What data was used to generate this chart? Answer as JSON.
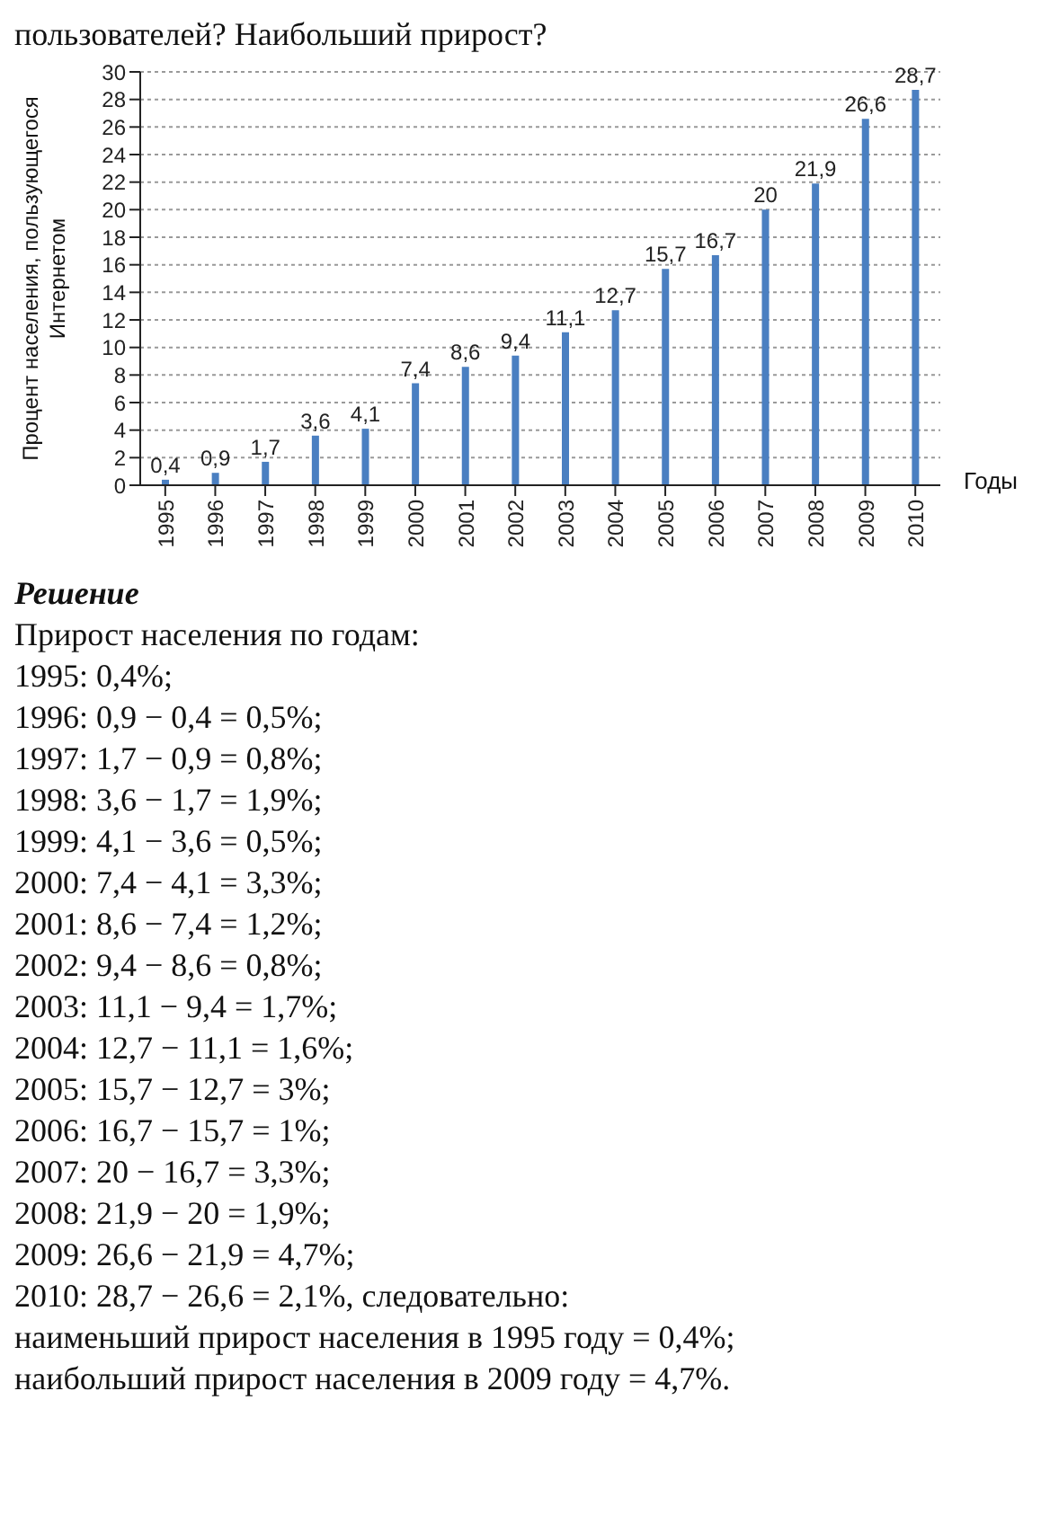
{
  "chart_data": {
    "type": "bar",
    "title": "пользователей? Наибольший прирост?",
    "ylabel": "Процент населения, пользующегося Интернетом",
    "xlabel": "Годы",
    "categories": [
      "1995",
      "1996",
      "1997",
      "1998",
      "1999",
      "2000",
      "2001",
      "2002",
      "2003",
      "2004",
      "2005",
      "2006",
      "2007",
      "2008",
      "2009",
      "2010"
    ],
    "values": [
      0.4,
      0.9,
      1.7,
      3.6,
      4.1,
      7.4,
      8.6,
      9.4,
      11.1,
      12.7,
      15.7,
      16.7,
      20,
      21.9,
      26.6,
      28.7
    ],
    "value_labels": [
      "0,4",
      "0,9",
      "1,7",
      "3,6",
      "4,1",
      "7,4",
      "8,6",
      "9,4",
      "11,1",
      "12,7",
      "15,7",
      "16,7",
      "20",
      "21,9",
      "26,6",
      "28,7"
    ],
    "color": "#4a7fc1",
    "ylim": [
      0,
      30
    ],
    "yticks": [
      0,
      2,
      4,
      6,
      8,
      10,
      12,
      14,
      16,
      18,
      20,
      22,
      24,
      26,
      28,
      30
    ],
    "grid": "y",
    "annotations": [
      "Решение",
      "Прирост населения по годам:",
      "1995: 0,4%;",
      "1996: 0,9 − 0,4 = 0,5%;",
      "1997: 1,7 − 0,9 = 0,8%;",
      "1998: 3,6 − 1,7 = 1,9%;",
      "1999: 4,1 − 3,6 = 0,5%;",
      "2000: 7,4 − 4,1 = 3,3%;",
      "2001: 8,6 − 7,4 = 1,2%;",
      "2002: 9,4 − 8,6 = 0,8%;",
      "2003: 11,1 − 9,4 = 1,7%;",
      "2004: 12,7 − 11,1 = 1,6%;",
      "2005: 15,7 − 12,7 = 3%;",
      "2006: 16,7 − 15,7 = 1%;",
      "2007: 20 − 16,7 = 3,3%;",
      "2008: 21,9 − 20 = 1,9%;",
      "2009: 26,6 − 21,9 = 4,7%;",
      "2010: 28,7 − 26,6 = 2,1%, следовательно:",
      "наименьший прирост населения в 1995 году = 0,4%;",
      "наибольший прирост населения в 2009 году = 4,7%."
    ]
  }
}
